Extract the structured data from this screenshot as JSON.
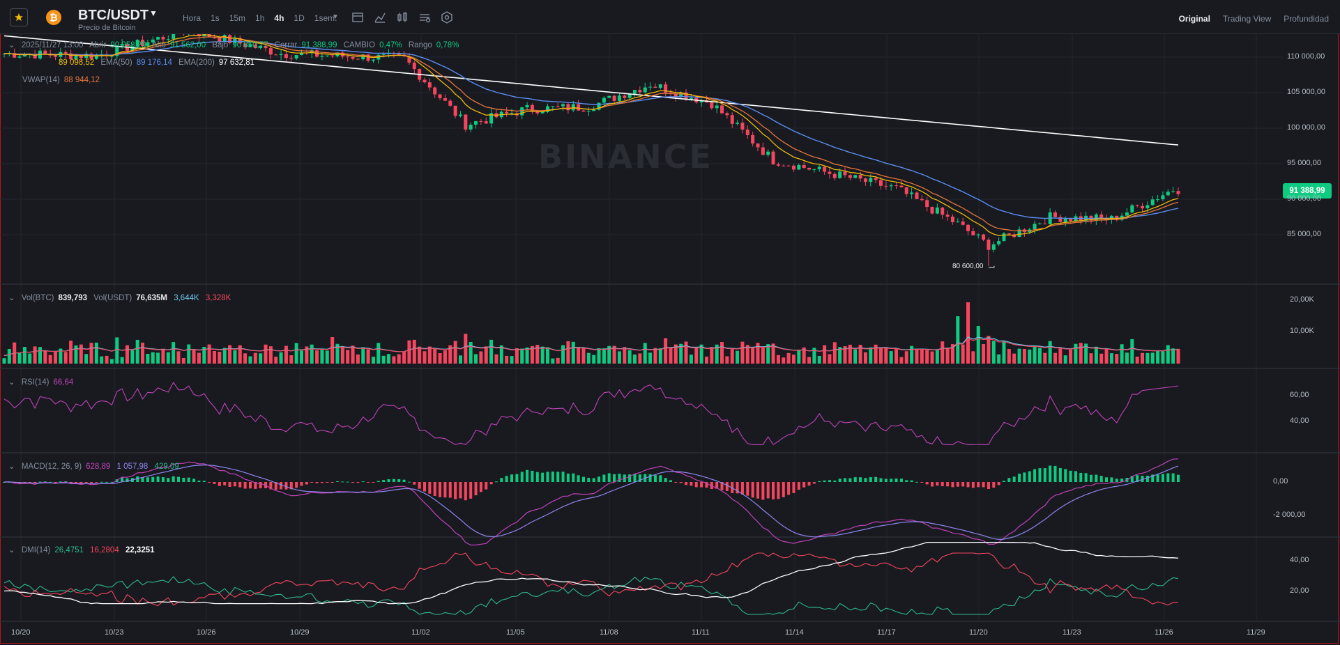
{
  "header": {
    "pair": "BTC/USDT",
    "subtitle": "Precio de Bitcoin",
    "intervals": [
      "Hora",
      "1s",
      "15m",
      "1h",
      "4h",
      "1D",
      "1sem."
    ],
    "active_interval": "4h",
    "view_tabs": [
      "Original",
      "Trading View",
      "Profundidad"
    ],
    "active_view": "Original"
  },
  "main_legend": {
    "datetime": "2025/11/27 13:00",
    "open_label": "Abrir",
    "open": "90 958,29",
    "high_label": "Alto",
    "high": "91 562,00",
    "low_label": "Bajo",
    "low": "90 850,77",
    "close_label": "Cerrar",
    "close": "91 388,99",
    "change_label": "CAMBIO",
    "change": "0,47%",
    "range_label": "Rango",
    "range": "0,78%",
    "ema7": "89 098,52",
    "ema50_label": "EMA(50)",
    "ema50": "89 176,14",
    "ema200_label": "EMA(200)",
    "ema200": "97 632,81",
    "vwap_label": "VWAP(14)",
    "vwap": "88 944,12"
  },
  "watermark": "BINANCE",
  "current_price": "91 388,99",
  "low_annotation": "80 600,00",
  "price_axis": [
    "110 000,00",
    "105 000,00",
    "100 000,00",
    "95 000,00",
    "90 000,00",
    "85 000,00"
  ],
  "vol_legend": {
    "label": "Vol(BTC)",
    "value": "839,793",
    "label2": "Vol(USDT)",
    "value2": "76,635M",
    "ma1": "3,644K",
    "ma2": "3,328K"
  },
  "vol_axis": [
    "20,00K",
    "10,00K"
  ],
  "rsi_legend": {
    "label": "RSI(14)",
    "value": "66,64"
  },
  "rsi_axis": [
    "60,00",
    "40,00"
  ],
  "macd_legend": {
    "label": "MACD(12, 26, 9)",
    "v1": "628,89",
    "v2": "1 057,98",
    "v3": "429,09"
  },
  "macd_axis": [
    "0,00",
    "-2 000,00"
  ],
  "dmi_legend": {
    "label": "DMI(14)",
    "v1": "26,4751",
    "v2": "16,2804",
    "v3": "22,3251"
  },
  "dmi_axis": [
    "40,00",
    "20,00"
  ],
  "date_axis": [
    "10/20",
    "10/23",
    "10/26",
    "10/29",
    "11/02",
    "11/05",
    "11/08",
    "11/11",
    "11/14",
    "11/17",
    "11/20",
    "11/23",
    "11/26",
    "11/29"
  ],
  "colors": {
    "up": "#0ecb81",
    "down": "#f6465d",
    "ema7": "#f0b90b",
    "ema50": "#5b8def",
    "ema200": "#ffffff",
    "vwap": "#e8763b",
    "rsi": "#c043b7",
    "macd_dif": "#c043b7",
    "macd_dea": "#8f86ef",
    "dmi_pos": "#2fb98a",
    "dmi_neg": "#f6465d",
    "adx": "#ffffff"
  },
  "chart_data": {
    "type": "candlestick",
    "price_series_anchors": [
      {
        "date": "10/20",
        "price": 110500
      },
      {
        "date": "10/23",
        "price": 110200
      },
      {
        "date": "10/26",
        "price": 113800
      },
      {
        "date": "10/29",
        "price": 110500
      },
      {
        "date": "11/02",
        "price": 109800
      },
      {
        "date": "11/04",
        "price": 100500
      },
      {
        "date": "11/06",
        "price": 102700
      },
      {
        "date": "11/08",
        "price": 103000
      },
      {
        "date": "11/10",
        "price": 106200
      },
      {
        "date": "11/12",
        "price": 103500
      },
      {
        "date": "11/14",
        "price": 95500
      },
      {
        "date": "11/17",
        "price": 92500
      },
      {
        "date": "11/18",
        "price": 91500
      },
      {
        "date": "11/20",
        "price": 86500
      },
      {
        "date": "11/21",
        "price": 83500
      },
      {
        "date": "11/23",
        "price": 87500
      },
      {
        "date": "11/25",
        "price": 87200
      },
      {
        "date": "11/27",
        "price": 91389
      }
    ],
    "low_marker": {
      "date": "11/21",
      "price": 80600
    },
    "ema200_range": [
      113000,
      97633
    ],
    "ylim": [
      80000,
      115000
    ]
  }
}
